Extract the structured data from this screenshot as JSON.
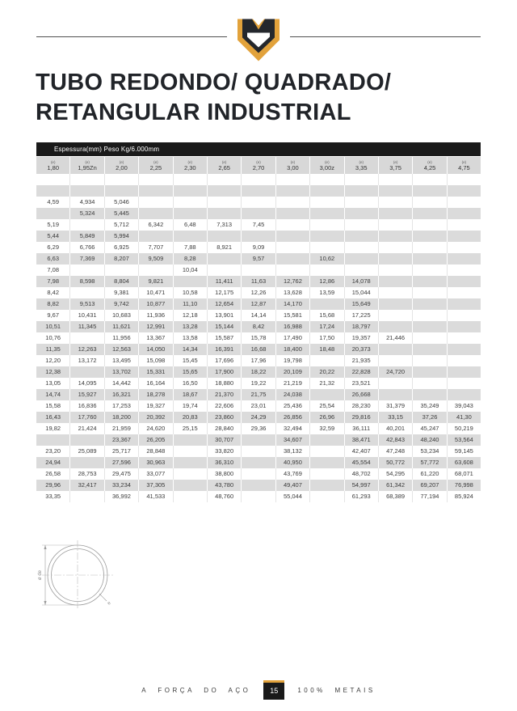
{
  "brand": {
    "gold": "#e2a23b",
    "dark": "#24272c",
    "logo_icon": "shield-m-logo"
  },
  "title": {
    "line1": "TUBO REDONDO/ QUADRADO/",
    "line2": "RETANGULAR INDUSTRIAL"
  },
  "table": {
    "header_bar": "Espessura(mm) Peso Kg/6.000mm",
    "col_sup": "(e)",
    "columns": [
      "1,80",
      "1,95Zn",
      "2,00",
      "2,25",
      "2,30",
      "2,65",
      "2,70",
      "3,00",
      "3,00z",
      "3,35",
      "3,75",
      "4,25",
      "4,75"
    ],
    "rows": [
      [
        "",
        "",
        "",
        "",
        "",
        "",
        "",
        "",
        "",
        "",
        "",
        "",
        ""
      ],
      [
        "",
        "",
        "",
        "",
        "",
        "",
        "",
        "",
        "",
        "",
        "",
        "",
        ""
      ],
      [
        "4,59",
        "4,934",
        "5,046",
        "",
        "",
        "",
        "",
        "",
        "",
        "",
        "",
        "",
        ""
      ],
      [
        "",
        "5,324",
        "5,445",
        "",
        "",
        "",
        "",
        "",
        "",
        "",
        "",
        "",
        ""
      ],
      [
        "5,19",
        "",
        "5,712",
        "6,342",
        "6,48",
        "7,313",
        "7,45",
        "",
        "",
        "",
        "",
        "",
        ""
      ],
      [
        "5,44",
        "5,849",
        "5,994",
        "",
        "",
        "",
        "",
        "",
        "",
        "",
        "",
        "",
        ""
      ],
      [
        "6,29",
        "6,766",
        "6,925",
        "7,707",
        "7,88",
        "8,921",
        "9,09",
        "",
        "",
        "",
        "",
        "",
        ""
      ],
      [
        "6,63",
        "7,369",
        "8,207",
        "9,509",
        "8,28",
        "",
        "9,57",
        "",
        "10,62",
        "",
        "",
        "",
        ""
      ],
      [
        "7,08",
        "",
        "",
        "",
        "10,04",
        "",
        "",
        "",
        "",
        "",
        "",
        "",
        ""
      ],
      [
        "7,98",
        "8,598",
        "8,804",
        "9,821",
        "",
        "11,411",
        "11,63",
        "12,762",
        "12,86",
        "14,078",
        "",
        "",
        ""
      ],
      [
        "8,42",
        "",
        "9,381",
        "10,471",
        "10,58",
        "12,175",
        "12,26",
        "13,628",
        "13,59",
        "15,044",
        "",
        "",
        ""
      ],
      [
        "8,82",
        "9,513",
        "9,742",
        "10,877",
        "11,10",
        "12,654",
        "12,87",
        "14,170",
        "",
        "15,649",
        "",
        "",
        ""
      ],
      [
        "9,67",
        "10,431",
        "10,683",
        "11,936",
        "12,18",
        "13,901",
        "14,14",
        "15,581",
        "15,68",
        "17,225",
        "",
        "",
        ""
      ],
      [
        "10,51",
        "11,345",
        "11,621",
        "12,991",
        "13,28",
        "15,144",
        "8,42",
        "16,988",
        "17,24",
        "18,797",
        "",
        "",
        ""
      ],
      [
        "10,76",
        "",
        "11,956",
        "13,367",
        "13,58",
        "15,587",
        "15,78",
        "17,490",
        "17,50",
        "19,357",
        "21,446",
        "",
        ""
      ],
      [
        "11,35",
        "12,263",
        "12,563",
        "14,050",
        "14,34",
        "16,391",
        "16,68",
        "18,400",
        "18,48",
        "20,373",
        "",
        "",
        ""
      ],
      [
        "12,20",
        "13,172",
        "13,495",
        "15,098",
        "15,45",
        "17,696",
        "17,96",
        "19,798",
        "",
        "21,935",
        "",
        "",
        ""
      ],
      [
        "12,38",
        "",
        "13,702",
        "15,331",
        "15,65",
        "17,900",
        "18,22",
        "20,109",
        "20,22",
        "22,828",
        "24,720",
        "",
        ""
      ],
      [
        "13,05",
        "14,095",
        "14,442",
        "16,164",
        "16,50",
        "18,880",
        "19,22",
        "21,219",
        "21,32",
        "23,521",
        "",
        "",
        ""
      ],
      [
        "14,74",
        "15,927",
        "16,321",
        "18,278",
        "18,67",
        "21,370",
        "21,75",
        "24,038",
        "",
        "26,668",
        "",
        "",
        ""
      ],
      [
        "15,58",
        "16,836",
        "17,253",
        "19,327",
        "19,74",
        "22,606",
        "23,01",
        "25,436",
        "25,54",
        "28,230",
        "31,379",
        "35,249",
        "39,043"
      ],
      [
        "16,43",
        "17,760",
        "18,200",
        "20,392",
        "20,83",
        "23,860",
        "24,29",
        "26,856",
        "26,96",
        "29,816",
        "33,15",
        "37,26",
        "41,30"
      ],
      [
        "19,82",
        "21,424",
        "21,959",
        "24,620",
        "25,15",
        "28,840",
        "29,36",
        "32,494",
        "32,59",
        "36,111",
        "40,201",
        "45,247",
        "50,219"
      ],
      [
        "",
        "",
        "23,367",
        "26,205",
        "",
        "30,707",
        "",
        "34,607",
        "",
        "38,471",
        "42,843",
        "48,240",
        "53,564"
      ],
      [
        "23,20",
        "25,089",
        "25,717",
        "28,848",
        "",
        "33,820",
        "",
        "38,132",
        "",
        "42,407",
        "47,248",
        "53,234",
        "59,145"
      ],
      [
        "24,94",
        "",
        "27,596",
        "30,963",
        "",
        "36,310",
        "",
        "40,950",
        "",
        "45,554",
        "50,772",
        "57,772",
        "63,608"
      ],
      [
        "26,58",
        "28,753",
        "29,475",
        "33,077",
        "",
        "38,800",
        "",
        "43,769",
        "",
        "48,702",
        "54,295",
        "61,220",
        "68,071"
      ],
      [
        "29,96",
        "32,417",
        "33,234",
        "37,305",
        "",
        "43,780",
        "",
        "49,407",
        "",
        "54,997",
        "61,342",
        "69,207",
        "76,998"
      ],
      [
        "33,35",
        "",
        "36,992",
        "41,533",
        "",
        "48,760",
        "",
        "55,044",
        "",
        "61,293",
        "68,389",
        "77,194",
        "85,924"
      ]
    ]
  },
  "diagram": {
    "outer_diameter_label": "ø de",
    "thickness_label": "e"
  },
  "footer": {
    "left": "A FORÇA DO AÇO",
    "page_number": "15",
    "right": "100% METAIS"
  }
}
